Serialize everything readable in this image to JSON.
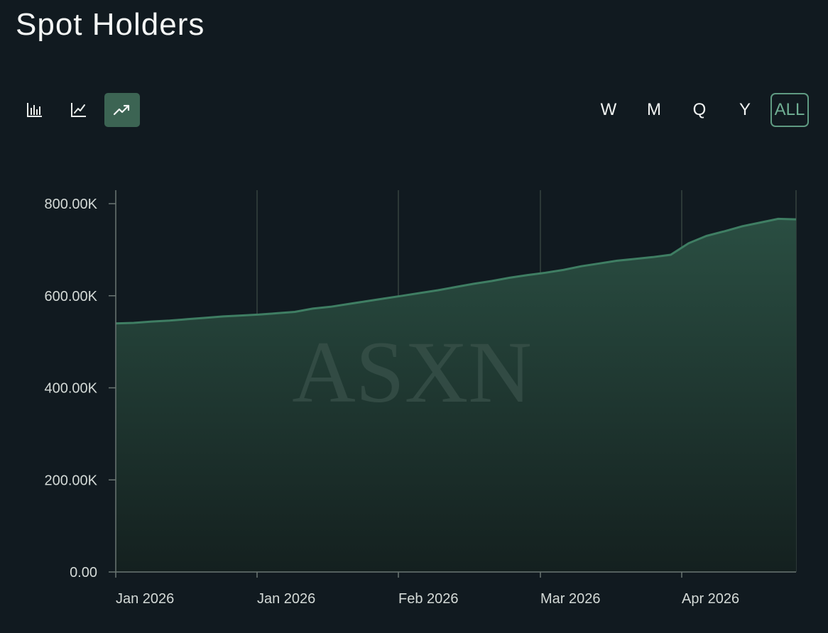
{
  "header": {
    "title": "Spot Holders"
  },
  "chart_types": [
    {
      "icon": "bar-chart-icon",
      "active": false
    },
    {
      "icon": "line-chart-icon",
      "active": false
    },
    {
      "icon": "trending-up-icon",
      "active": true
    }
  ],
  "ranges": [
    {
      "label": "W",
      "active": false
    },
    {
      "label": "M",
      "active": false
    },
    {
      "label": "Q",
      "active": false
    },
    {
      "label": "Y",
      "active": false
    },
    {
      "label": "ALL",
      "active": true
    }
  ],
  "watermark": "ASXN",
  "colors": {
    "background": "#111a20",
    "line": "#3f7e63",
    "area_top": "#2a4e42",
    "area_bottom": "#14201f",
    "active_button": "#3c6453",
    "active_range_border": "#5f9a82"
  },
  "chart_data": {
    "type": "area",
    "title": "Spot Holders",
    "ylim": [
      0,
      800000
    ],
    "y_ticks": [
      {
        "value": 0,
        "label": "0.00"
      },
      {
        "value": 200000,
        "label": "200.00K"
      },
      {
        "value": 400000,
        "label": "400.00K"
      },
      {
        "value": 600000,
        "label": "600.00K"
      },
      {
        "value": 800000,
        "label": "800.00K"
      }
    ],
    "x_ticks": [
      "Jan 2026",
      "Jan 2026",
      "Feb 2026",
      "Mar 2026",
      "Apr 2026"
    ],
    "grid": {
      "vertical": true,
      "horizontal": false
    },
    "series": [
      {
        "values": [
          540000,
          541000,
          544000,
          546000,
          549000,
          552000,
          555000,
          557000,
          559000,
          562000,
          565000,
          572000,
          576000,
          582000,
          588000,
          594000,
          600000,
          606000,
          612000,
          619000,
          626000,
          632000,
          639000,
          645000,
          650000,
          656000,
          664000,
          670000,
          676000,
          680000,
          684000,
          689000,
          714000,
          730000,
          740000,
          751000,
          759000,
          767000,
          766000
        ]
      }
    ]
  }
}
